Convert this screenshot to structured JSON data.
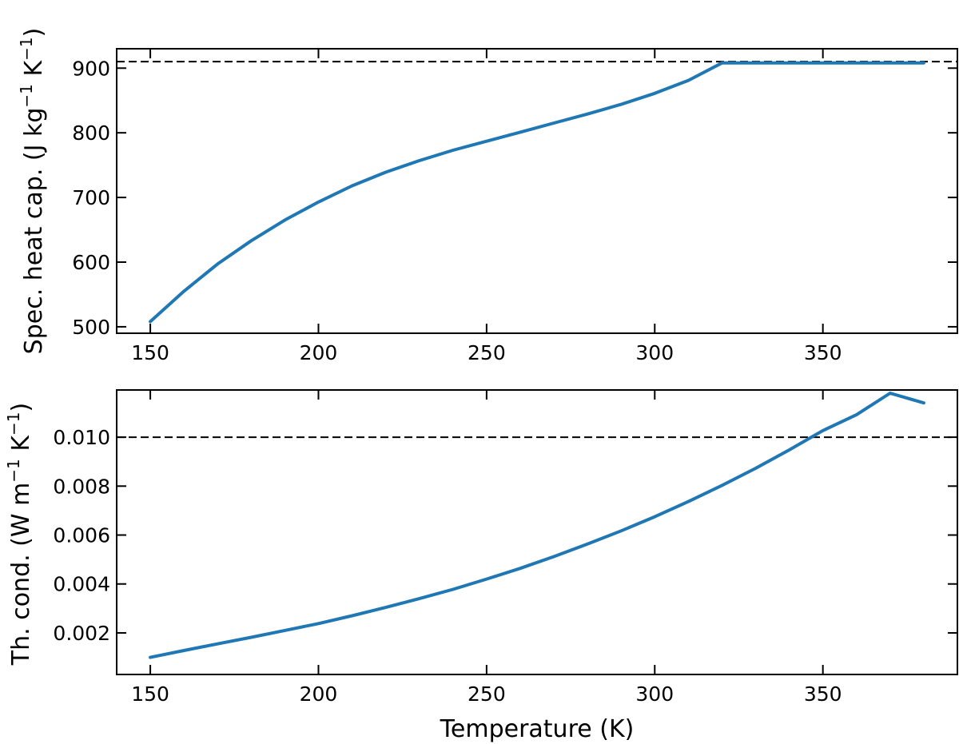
{
  "chart_data": [
    {
      "type": "line",
      "ylabel": "Spec. heat cap. (J kg",
      "ylabel_unit_exp1": "−1",
      "ylabel_unit_mid": " K",
      "ylabel_unit_exp2": "−1",
      "ylabel_close": ")",
      "xlim": [
        140,
        390
      ],
      "ylim": [
        490,
        930
      ],
      "xticks": [
        150,
        200,
        250,
        300,
        350
      ],
      "xtick_labels": [
        "150",
        "200",
        "250",
        "300",
        "350"
      ],
      "yticks": [
        500,
        600,
        700,
        800,
        900
      ],
      "ytick_labels": [
        "500",
        "600",
        "700",
        "800",
        "900"
      ],
      "grid": false,
      "reference_line": 910,
      "series": [
        {
          "color": "#1f77b4",
          "x": [
            150,
            160,
            170,
            180,
            190,
            200,
            210,
            220,
            230,
            240,
            250,
            260,
            270,
            280,
            290,
            300,
            310,
            320,
            330,
            340,
            350,
            360,
            370,
            380
          ],
          "y": [
            508,
            555,
            597,
            633,
            665,
            693,
            718,
            739,
            757,
            773,
            787,
            801,
            815,
            829,
            844,
            861,
            881,
            908,
            908,
            908,
            908,
            908,
            908,
            908
          ]
        }
      ]
    },
    {
      "type": "line",
      "xlabel": "Temperature (K)",
      "ylabel": "Th. cond. (W m",
      "ylabel_unit_exp1": "−1",
      "ylabel_unit_mid": " K",
      "ylabel_unit_exp2": "−1",
      "ylabel_close": ")",
      "xlim": [
        140,
        390
      ],
      "ylim": [
        0.0003,
        0.01193
      ],
      "xticks": [
        150,
        200,
        250,
        300,
        350
      ],
      "xtick_labels": [
        "150",
        "200",
        "250",
        "300",
        "350"
      ],
      "yticks": [
        0.002,
        0.004,
        0.006,
        0.008,
        0.01
      ],
      "ytick_labels": [
        "0.002",
        "0.004",
        "0.006",
        "0.008",
        "0.010"
      ],
      "grid": false,
      "reference_line": 0.01,
      "series": [
        {
          "color": "#1f77b4",
          "x": [
            150,
            160,
            170,
            180,
            190,
            200,
            210,
            220,
            230,
            240,
            250,
            260,
            270,
            280,
            290,
            300,
            310,
            320,
            330,
            340,
            350,
            360,
            370,
            380
          ],
          "y": [
            0.001,
            0.00128,
            0.00155,
            0.00182,
            0.0021,
            0.00238,
            0.0027,
            0.00304,
            0.0034,
            0.00378,
            0.0042,
            0.00464,
            0.00512,
            0.00563,
            0.00617,
            0.00675,
            0.00737,
            0.00803,
            0.00873,
            0.00948,
            0.01027,
            0.01092,
            0.0118,
            0.0114
          ]
        }
      ]
    }
  ]
}
